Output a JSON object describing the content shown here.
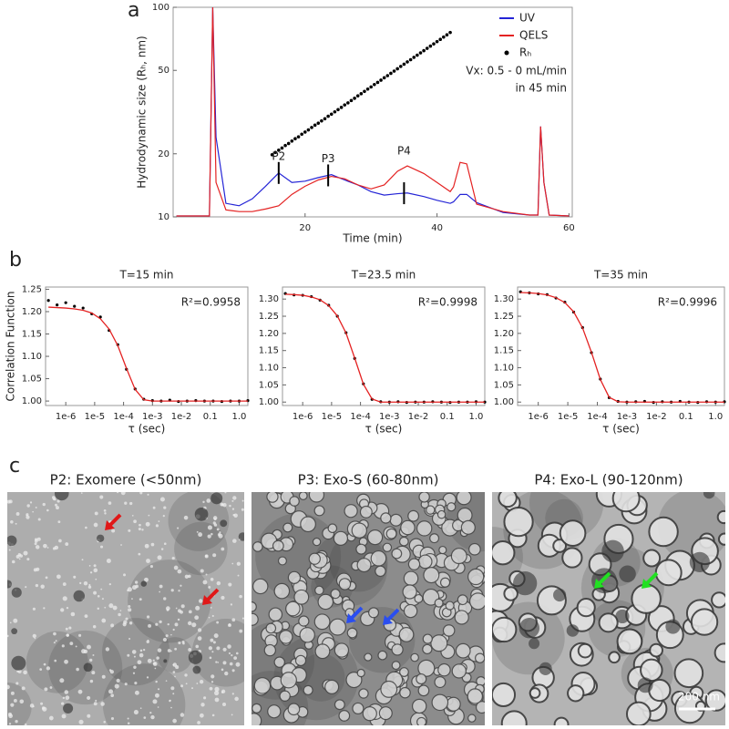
{
  "chart_data": [
    {
      "type": "line",
      "panel_label": "a",
      "x_label": "Time (min)",
      "y_label": "Hydrodynamic size (Rₕ, nm)",
      "log_y": true,
      "xlim": [
        0,
        60.5
      ],
      "ylim": [
        10,
        100
      ],
      "xticks": [
        20,
        40,
        60
      ],
      "yticks": [
        10,
        20,
        50,
        100
      ],
      "legend": "upper right",
      "x": [
        0.5,
        5.5,
        6.0,
        6.5,
        8,
        10,
        12,
        14,
        16,
        18,
        20,
        22,
        24,
        26,
        28,
        30,
        32,
        34,
        35.5,
        38,
        40,
        42,
        42.5,
        43.5,
        44.5,
        46,
        50,
        54,
        55.3,
        55.7,
        56.2,
        57,
        60
      ],
      "series": [
        {
          "name": "UV",
          "color": "#2424d6",
          "mode": "line",
          "values": [
            10.1,
            10.1,
            100,
            24,
            11.6,
            11.3,
            12.2,
            14.0,
            16.2,
            14.6,
            14.8,
            15.4,
            15.9,
            15.0,
            14.2,
            13.2,
            12.7,
            12.9,
            13.0,
            12.5,
            12.0,
            11.6,
            11.8,
            12.8,
            12.8,
            11.7,
            10.5,
            10.2,
            10.2,
            27,
            14.6,
            10.2,
            10.1
          ]
        },
        {
          "name": "QELS",
          "color": "#e42222",
          "mode": "line",
          "values": [
            10.1,
            10.1,
            100,
            14.6,
            10.8,
            10.6,
            10.6,
            10.9,
            11.3,
            12.8,
            14.0,
            15.0,
            15.6,
            15.2,
            14.2,
            13.6,
            14.2,
            16.5,
            17.5,
            16.1,
            14.6,
            13.2,
            13.9,
            18.2,
            17.9,
            11.5,
            10.6,
            10.2,
            10.2,
            27,
            14.6,
            10.2,
            10.1
          ]
        },
        {
          "name": "Rₕ",
          "color": "#000000",
          "mode": "markers",
          "x": [
            15,
            15.5,
            16,
            16.5,
            17,
            17.5,
            18,
            18.5,
            19,
            19.5,
            20,
            20.5,
            21,
            21.5,
            22,
            22.5,
            23,
            23.5,
            24,
            24.5,
            25,
            25.5,
            26,
            26.5,
            27,
            27.5,
            28,
            28.5,
            29,
            29.5,
            30,
            30.5,
            31,
            31.5,
            32,
            32.5,
            33,
            33.5,
            34,
            34.5,
            35,
            35.5,
            36,
            36.5,
            37,
            37.5,
            38,
            38.5,
            39,
            39.5,
            40,
            40.5,
            41,
            41.5,
            42
          ],
          "values": [
            19.8,
            20.3,
            20.8,
            21.3,
            21.9,
            22.4,
            23.0,
            23.6,
            24.1,
            24.8,
            25.4,
            26.0,
            26.7,
            27.4,
            28.0,
            28.7,
            29.4,
            30.2,
            30.9,
            31.7,
            32.5,
            33.3,
            34.2,
            35.0,
            35.9,
            36.8,
            37.8,
            38.7,
            39.7,
            40.7,
            41.7,
            42.8,
            43.8,
            44.9,
            46.1,
            47.2,
            48.4,
            49.6,
            50.9,
            52.2,
            53.5,
            54.9,
            56.2,
            57.7,
            59.1,
            60.6,
            62.1,
            63.7,
            65.3,
            66.9,
            68.6,
            70.3,
            72.1,
            73.9,
            75.8
          ]
        }
      ],
      "notes": [
        "Vx: 0.5 - 0 mL/min",
        "in 45 min"
      ],
      "annotations": [
        {
          "text": "P2",
          "x": 16
        },
        {
          "text": "P3",
          "x": 23.5
        },
        {
          "text": "P4",
          "x": 35
        }
      ]
    },
    {
      "type": "line",
      "panel_label": "b",
      "title": "T=15 min",
      "annotation": "R²=0.9958",
      "y_label": "Correlation Function",
      "x_label": "τ (sec)",
      "log_x": true,
      "xlim": [
        2e-07,
        2
      ],
      "ylim": [
        0.99,
        1.255
      ],
      "xticks": [
        {
          "value": 1e-06,
          "label": "1e-6"
        },
        {
          "value": 1e-05,
          "label": "1e-5"
        },
        {
          "value": 0.0001,
          "label": "1e-4"
        },
        {
          "value": 0.001,
          "label": "1e-3"
        },
        {
          "value": 0.01,
          "label": "1e-2"
        },
        0.1,
        {
          "value": 1,
          "label": "1.0"
        }
      ],
      "yticks": [
        {
          "value": 1,
          "label": "1.00"
        },
        1.05,
        {
          "value": 1.1,
          "label": "1.10"
        },
        1.15,
        {
          "value": 1.2,
          "label": "1.20"
        },
        1.25
      ],
      "x": [
        2.51e-07,
        5.01e-07,
        1e-06,
        2e-06,
        3.98e-06,
        7.94e-06,
        1.58e-05,
        3.16e-05,
        6.31e-05,
        0.000126,
        0.000251,
        0.000501,
        0.001,
        0.002,
        0.00398,
        0.00794,
        0.0158,
        0.0316,
        0.0631,
        0.126,
        0.251,
        0.501,
        1,
        2
      ],
      "series": [
        {
          "color": "#000000",
          "mode": "markers",
          "values": [
            1.225,
            1.215,
            1.22,
            1.212,
            1.208,
            1.195,
            1.188,
            1.158,
            1.126,
            1.071,
            1.027,
            1.004,
            1.001,
            1.0,
            1.002,
            0.999,
            1.0,
            1.001,
            1.0,
            1.0,
            0.999,
            1.0,
            1.0,
            1.001
          ]
        },
        {
          "color": "#e42222",
          "mode": "line",
          "values": [
            1.21,
            1.209,
            1.208,
            1.206,
            1.203,
            1.197,
            1.184,
            1.161,
            1.124,
            1.073,
            1.026,
            1.003,
            1.0,
            1.0,
            1.0,
            1.0,
            1.0,
            1.0,
            1.0,
            1.0,
            1.0,
            1.0,
            1.0,
            1.0
          ]
        }
      ]
    },
    {
      "type": "line",
      "title": "T=23.5 min",
      "annotation": "R²=0.9998",
      "x_label": "τ (sec)",
      "log_x": true,
      "xlim": [
        2e-07,
        2
      ],
      "ylim": [
        0.99,
        1.335
      ],
      "xticks": [
        {
          "value": 1e-06,
          "label": "1e-6"
        },
        {
          "value": 1e-05,
          "label": "1e-5"
        },
        {
          "value": 0.0001,
          "label": "1e-4"
        },
        {
          "value": 0.001,
          "label": "1e-3"
        },
        {
          "value": 0.01,
          "label": "1e-2"
        },
        0.1,
        {
          "value": 1,
          "label": "1.0"
        }
      ],
      "yticks": [
        {
          "value": 1,
          "label": "1.00"
        },
        1.05,
        {
          "value": 1.1,
          "label": "1.10"
        },
        1.15,
        {
          "value": 1.2,
          "label": "1.20"
        },
        1.25,
        {
          "value": 1.3,
          "label": "1.30"
        }
      ],
      "x": [
        2.51e-07,
        5.01e-07,
        1e-06,
        2e-06,
        3.98e-06,
        7.94e-06,
        1.58e-05,
        3.16e-05,
        6.31e-05,
        0.000126,
        0.000251,
        0.000501,
        0.001,
        0.002,
        0.00398,
        0.00794,
        0.0158,
        0.0316,
        0.0631,
        0.126,
        0.251,
        0.501,
        1,
        2
      ],
      "series": [
        {
          "color": "#000000",
          "mode": "markers",
          "values": [
            1.316,
            1.312,
            1.311,
            1.307,
            1.297,
            1.282,
            1.25,
            1.202,
            1.127,
            1.053,
            1.008,
            1.001,
            1.0,
            1.001,
            0.999,
            1.0,
            1.0,
            1.001,
            1.0,
            0.999,
            1.0,
            1.0,
            1.001,
            1.0
          ]
        },
        {
          "color": "#e42222",
          "mode": "line",
          "values": [
            1.314,
            1.313,
            1.311,
            1.306,
            1.298,
            1.281,
            1.251,
            1.201,
            1.128,
            1.052,
            1.009,
            1.0,
            1.0,
            1.0,
            1.0,
            1.0,
            1.0,
            1.0,
            1.0,
            1.0,
            1.0,
            1.0,
            1.0,
            1.0
          ]
        }
      ]
    },
    {
      "type": "line",
      "title": "T=35 min",
      "annotation": "R²=0.9996",
      "x_label": "τ (sec)",
      "log_x": true,
      "xlim": [
        2e-07,
        2
      ],
      "ylim": [
        0.99,
        1.335
      ],
      "xticks": [
        {
          "value": 1e-06,
          "label": "1e-6"
        },
        {
          "value": 1e-05,
          "label": "1e-5"
        },
        {
          "value": 0.0001,
          "label": "1e-4"
        },
        {
          "value": 0.001,
          "label": "1e-3"
        },
        {
          "value": 0.01,
          "label": "1e-2"
        },
        0.1,
        {
          "value": 1,
          "label": "1.0"
        }
      ],
      "yticks": [
        {
          "value": 1,
          "label": "1.00"
        },
        1.05,
        {
          "value": 1.1,
          "label": "1.10"
        },
        1.15,
        {
          "value": 1.2,
          "label": "1.20"
        },
        1.25,
        {
          "value": 1.3,
          "label": "1.30"
        }
      ],
      "x": [
        2.51e-07,
        5.01e-07,
        1e-06,
        2e-06,
        3.98e-06,
        7.94e-06,
        1.58e-05,
        3.16e-05,
        6.31e-05,
        0.000126,
        0.000251,
        0.000501,
        0.001,
        0.002,
        0.00398,
        0.00794,
        0.0158,
        0.0316,
        0.0631,
        0.126,
        0.251,
        0.501,
        1,
        2
      ],
      "series": [
        {
          "color": "#000000",
          "mode": "markers",
          "values": [
            1.321,
            1.318,
            1.315,
            1.313,
            1.303,
            1.291,
            1.262,
            1.217,
            1.144,
            1.067,
            1.013,
            1.002,
            1.0,
            1.001,
            1.002,
            0.999,
            1.001,
            1.0,
            1.002,
            1.0,
            0.999,
            1.001,
            1.0,
            1.001
          ]
        },
        {
          "color": "#e42222",
          "mode": "line",
          "values": [
            1.319,
            1.318,
            1.316,
            1.312,
            1.304,
            1.29,
            1.263,
            1.216,
            1.145,
            1.066,
            1.014,
            1.001,
            1.0,
            1.0,
            1.0,
            1.0,
            1.0,
            1.0,
            1.0,
            1.0,
            1.0,
            1.0,
            1.0,
            1.0
          ]
        }
      ]
    }
  ],
  "micrographs": {
    "panel_label": "c",
    "titles": [
      "P2: Exomere (<50nm)",
      "P3: Exo-S (60-80nm)",
      "P4: Exo-L (90-120nm)"
    ],
    "scale_bar": "200 nm"
  }
}
